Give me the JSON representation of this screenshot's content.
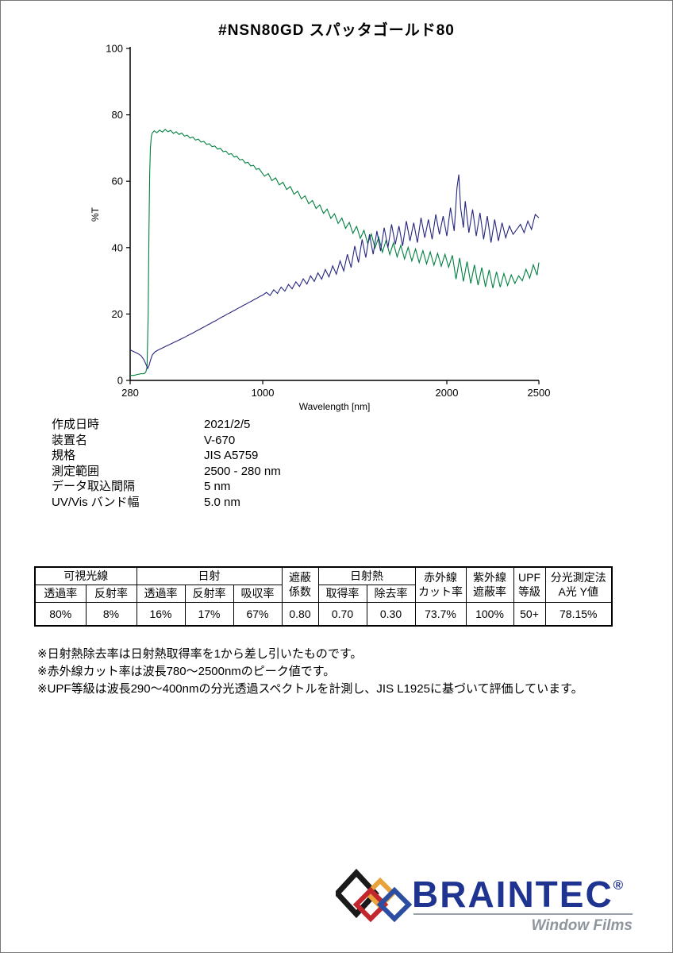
{
  "page": {
    "title": "#NSN80GD  スパッタゴールド80"
  },
  "chart_data": {
    "type": "line",
    "title": "#NSN80GD スパッタゴールド80",
    "xlabel": "Wavelength [nm]",
    "ylabel": "%T",
    "xlim": [
      280,
      2500
    ],
    "ylim": [
      0,
      100
    ],
    "xticks": [
      280,
      1000,
      2000,
      2500
    ],
    "yticks": [
      0,
      20,
      40,
      60,
      80,
      100
    ],
    "grid": false,
    "legend": "none",
    "series": [
      {
        "name": "transmittance-green",
        "color": "#008040",
        "x": [
          280,
          300,
          320,
          340,
          355,
          365,
          372,
          378,
          382,
          386,
          390,
          395,
          400,
          410,
          425,
          440,
          455,
          470,
          485,
          500,
          515,
          530,
          545,
          560,
          575,
          590,
          605,
          620,
          635,
          650,
          665,
          680,
          695,
          710,
          725,
          740,
          755,
          770,
          785,
          800,
          815,
          830,
          845,
          860,
          875,
          890,
          905,
          920,
          935,
          950,
          965,
          980,
          995,
          1010,
          1030,
          1050,
          1070,
          1090,
          1110,
          1130,
          1150,
          1170,
          1190,
          1210,
          1230,
          1250,
          1270,
          1290,
          1310,
          1330,
          1350,
          1370,
          1390,
          1410,
          1430,
          1450,
          1470,
          1490,
          1510,
          1530,
          1550,
          1570,
          1590,
          1610,
          1630,
          1650,
          1670,
          1690,
          1710,
          1730,
          1750,
          1770,
          1790,
          1810,
          1830,
          1850,
          1870,
          1890,
          1910,
          1930,
          1950,
          1970,
          1990,
          2010,
          2030,
          2050,
          2070,
          2090,
          2110,
          2130,
          2150,
          2170,
          2190,
          2210,
          2230,
          2250,
          2270,
          2290,
          2310,
          2330,
          2350,
          2370,
          2390,
          2410,
          2430,
          2450,
          2470,
          2490,
          2500
        ],
        "y": [
          1.5,
          1.5,
          1.8,
          2.0,
          2.0,
          2.5,
          4.0,
          20,
          45,
          62,
          70,
          73.5,
          74.5,
          75.2,
          74.6,
          75.4,
          74.8,
          75.6,
          74.9,
          75.3,
          74.4,
          74.9,
          74.1,
          74.5,
          73.6,
          73.9,
          73.0,
          73.3,
          72.4,
          72.7,
          71.8,
          72.0,
          71.1,
          71.3,
          70.4,
          70.6,
          69.7,
          69.9,
          68.9,
          69.1,
          68.1,
          68.3,
          67.3,
          67.5,
          66.4,
          66.6,
          65.5,
          65.7,
          64.6,
          64.8,
          63.6,
          63.8,
          62.6,
          61.5,
          62.3,
          60.2,
          61.0,
          58.9,
          59.7,
          57.5,
          58.4,
          56.1,
          57.0,
          54.7,
          55.6,
          53.2,
          54.2,
          51.8,
          52.9,
          50.3,
          51.6,
          48.8,
          50.2,
          47.3,
          48.9,
          45.8,
          47.6,
          44.3,
          46.4,
          42.8,
          45.2,
          41.3,
          44.1,
          39.9,
          43.1,
          38.6,
          42.2,
          37.9,
          41.4,
          37.2,
          40.7,
          36.6,
          40.1,
          36.0,
          39.6,
          35.5,
          39.1,
          35.1,
          38.7,
          34.7,
          38.3,
          34.4,
          38.0,
          34.1,
          37.7,
          30.5,
          36.9,
          29.8,
          35.8,
          29.2,
          34.8,
          28.7,
          34.0,
          28.2,
          33.3,
          27.8,
          32.7,
          28.1,
          32.2,
          28.6,
          31.8,
          29.2,
          31.5,
          30.0,
          33.5,
          30.8,
          34.8,
          31.7,
          35.5
        ]
      },
      {
        "name": "reflectance-navy",
        "color": "#262680",
        "x": [
          280,
          295,
          310,
          325,
          340,
          355,
          368,
          375,
          382,
          390,
          400,
          415,
          430,
          445,
          460,
          475,
          490,
          505,
          520,
          535,
          550,
          565,
          580,
          595,
          610,
          625,
          640,
          655,
          670,
          685,
          700,
          715,
          730,
          745,
          760,
          775,
          790,
          805,
          820,
          835,
          850,
          865,
          880,
          895,
          910,
          925,
          940,
          955,
          970,
          985,
          1000,
          1020,
          1040,
          1060,
          1080,
          1100,
          1120,
          1140,
          1160,
          1180,
          1200,
          1220,
          1240,
          1260,
          1280,
          1300,
          1320,
          1340,
          1360,
          1380,
          1400,
          1420,
          1440,
          1460,
          1480,
          1500,
          1520,
          1540,
          1560,
          1580,
          1600,
          1620,
          1640,
          1660,
          1680,
          1700,
          1720,
          1740,
          1760,
          1780,
          1800,
          1820,
          1840,
          1860,
          1880,
          1900,
          1920,
          1940,
          1960,
          1980,
          2000,
          2020,
          2040,
          2055,
          2065,
          2075,
          2090,
          2100,
          2120,
          2140,
          2160,
          2180,
          2200,
          2220,
          2240,
          2260,
          2280,
          2300,
          2320,
          2340,
          2360,
          2380,
          2400,
          2420,
          2440,
          2460,
          2480,
          2500
        ],
        "y": [
          9.2,
          8.8,
          8.4,
          8.0,
          7.4,
          6.2,
          4.6,
          3.6,
          4.4,
          6.0,
          7.6,
          8.6,
          9.1,
          9.5,
          9.9,
          10.3,
          10.7,
          11.1,
          11.5,
          11.9,
          12.3,
          12.7,
          13.1,
          13.6,
          14.0,
          14.4,
          14.9,
          15.3,
          15.8,
          16.2,
          16.7,
          17.1,
          17.6,
          18.0,
          18.5,
          19.0,
          19.4,
          19.9,
          20.3,
          20.8,
          21.2,
          21.7,
          22.1,
          22.6,
          23.0,
          23.5,
          23.9,
          24.4,
          24.8,
          25.3,
          25.7,
          26.5,
          25.6,
          27.3,
          26.2,
          28.1,
          26.9,
          28.9,
          27.6,
          29.7,
          28.3,
          30.6,
          29.0,
          31.5,
          29.8,
          32.4,
          30.5,
          33.4,
          31.2,
          34.5,
          32.0,
          36.0,
          33.0,
          38.0,
          34.0,
          40.5,
          35.5,
          42.5,
          37.0,
          44.0,
          38.0,
          45.0,
          39.0,
          46.0,
          40.0,
          47.0,
          41.0,
          46.5,
          40.5,
          48.0,
          42.0,
          47.5,
          41.5,
          49.0,
          43.0,
          48.5,
          42.5,
          50.0,
          44.0,
          49.5,
          43.5,
          52.0,
          45.0,
          58.0,
          62.0,
          52.0,
          46.0,
          54.0,
          44.5,
          51.5,
          43.5,
          50.5,
          42.5,
          49.5,
          41.5,
          48.5,
          42.0,
          47.5,
          43.0,
          46.5,
          44.0,
          45.5,
          47.0,
          44.5,
          48.0,
          45.5,
          50.0,
          49.0
        ]
      }
    ]
  },
  "metadata": {
    "rows": [
      {
        "label": "作成日時",
        "value": "2021/2/5"
      },
      {
        "label": "装置名",
        "value": "V-670"
      },
      {
        "label": "規格",
        "value": "JIS A5759"
      },
      {
        "label": "測定範囲",
        "value": "2500 - 280 nm"
      },
      {
        "label": "データ取込間隔",
        "value": "5 nm"
      },
      {
        "label": "UV/Vis バンド幅",
        "value": "5.0 nm"
      }
    ]
  },
  "table": {
    "header_row1": [
      {
        "label": "可視光線",
        "colspan": 2
      },
      {
        "label": "日射",
        "colspan": 3
      },
      {
        "label": "遮蔽\n係数",
        "rowspan": 2
      },
      {
        "label": "日射熱",
        "colspan": 2
      },
      {
        "label": "赤外線\nカット率",
        "rowspan": 2
      },
      {
        "label": "紫外線\n遮蔽率",
        "rowspan": 2
      },
      {
        "label": "UPF\n等級",
        "rowspan": 2
      },
      {
        "label": "分光測定法\nA光 Y値",
        "rowspan": 2
      }
    ],
    "header_row2": [
      "透過率",
      "反射率",
      "透過率",
      "反射率",
      "吸収率",
      "取得率",
      "除去率"
    ],
    "values": [
      "80%",
      "8%",
      "16%",
      "17%",
      "67%",
      "0.80",
      "0.70",
      "0.30",
      "73.7%",
      "100%",
      "50+",
      "78.15%"
    ]
  },
  "notes": [
    "※日射熱除去率は日射熱取得率を1から差し引いたものです。",
    "※赤外線カット率は波長780～2500nmのピーク値です。",
    "※UPF等級は波長290～400nmの分光透過スペクトルを計測し、JIS L1925に基づいて評価しています。"
  ],
  "footer": {
    "brand": "BRAINTEC",
    "registered": "®",
    "tagline": "Window Films",
    "brand_color": "#1f3490",
    "diamond_colors": [
      "#1a1a1a",
      "#c1272d",
      "#e8a33d",
      "#2b4ea2"
    ]
  }
}
